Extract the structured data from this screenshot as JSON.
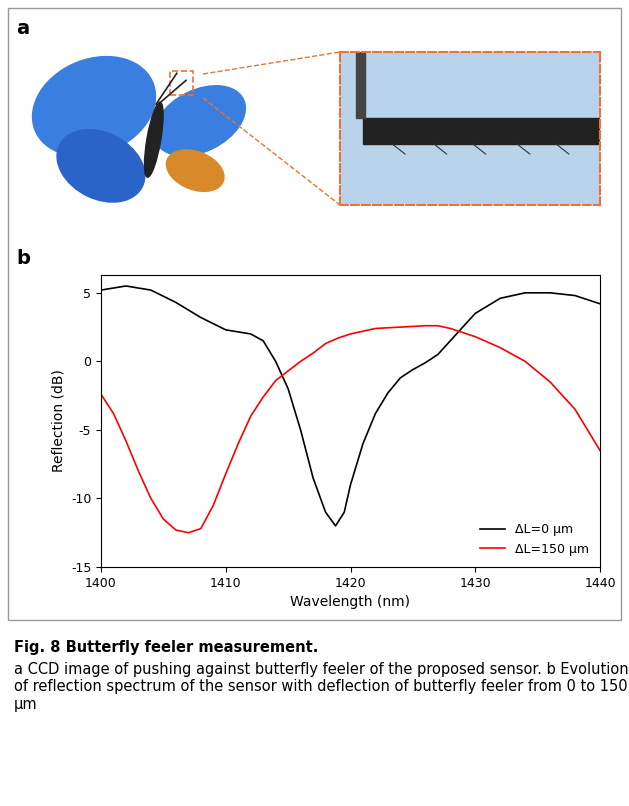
{
  "panel_labels": [
    "a",
    "b"
  ],
  "chart_data": {
    "type": "line",
    "x_label": "Wavelength (nm)",
    "y_label": "Reflection (dB)",
    "xlim": [
      1400,
      1440
    ],
    "xticks": [
      1400,
      1410,
      1420,
      1430,
      1440
    ],
    "ylim": [
      -15,
      6.3
    ],
    "yticks": [
      -15,
      -10,
      -5,
      0,
      5
    ],
    "legend": "lower right",
    "series": [
      {
        "name": "ΔL=0 μm",
        "color": "#000000",
        "x": [
          1400,
          1402,
          1404,
          1406,
          1408,
          1410,
          1412,
          1413,
          1414,
          1415,
          1416,
          1417,
          1418,
          1418.8,
          1419.5,
          1420,
          1421,
          1422,
          1423,
          1424,
          1425,
          1426,
          1427,
          1428,
          1429,
          1430,
          1432,
          1434,
          1436,
          1438,
          1440
        ],
        "values": [
          5.2,
          5.5,
          5.2,
          4.3,
          3.2,
          2.3,
          2.0,
          1.5,
          0,
          -2,
          -5,
          -8.5,
          -11,
          -12,
          -11,
          -9,
          -6,
          -3.8,
          -2.3,
          -1.2,
          -0.6,
          -0.1,
          0.5,
          1.5,
          2.5,
          3.5,
          4.6,
          5.0,
          5.0,
          4.8,
          4.2
        ]
      },
      {
        "name": "ΔL=150 μm",
        "color": "#ff0000",
        "x": [
          1400,
          1401,
          1402,
          1403,
          1404,
          1405,
          1406,
          1407,
          1408,
          1409,
          1410,
          1411,
          1412,
          1413,
          1414,
          1415,
          1416,
          1417,
          1418,
          1419,
          1420,
          1422,
          1424,
          1426,
          1427,
          1428,
          1430,
          1432,
          1434,
          1436,
          1438,
          1439,
          1440
        ],
        "values": [
          -2.4,
          -3.8,
          -5.8,
          -8,
          -10,
          -11.5,
          -12.3,
          -12.5,
          -12.2,
          -10.5,
          -8.2,
          -6,
          -4,
          -2.6,
          -1.4,
          -0.7,
          0,
          0.6,
          1.3,
          1.7,
          2.0,
          2.4,
          2.5,
          2.6,
          2.6,
          2.4,
          1.8,
          1.0,
          0,
          -1.5,
          -3.5,
          -5,
          -6.5
        ]
      }
    ]
  },
  "caption": {
    "title": "Fig. 8 Butterfly feeler measurement.",
    "parts": [
      {
        "label": "a",
        "text": "CCD image of pushing against butterfly feeler of the proposed sensor."
      },
      {
        "label": "b",
        "text": "Evolution of reflection spectrum of the sensor with deflection of butterfly feeler from 0 to 150 μm"
      }
    ]
  }
}
